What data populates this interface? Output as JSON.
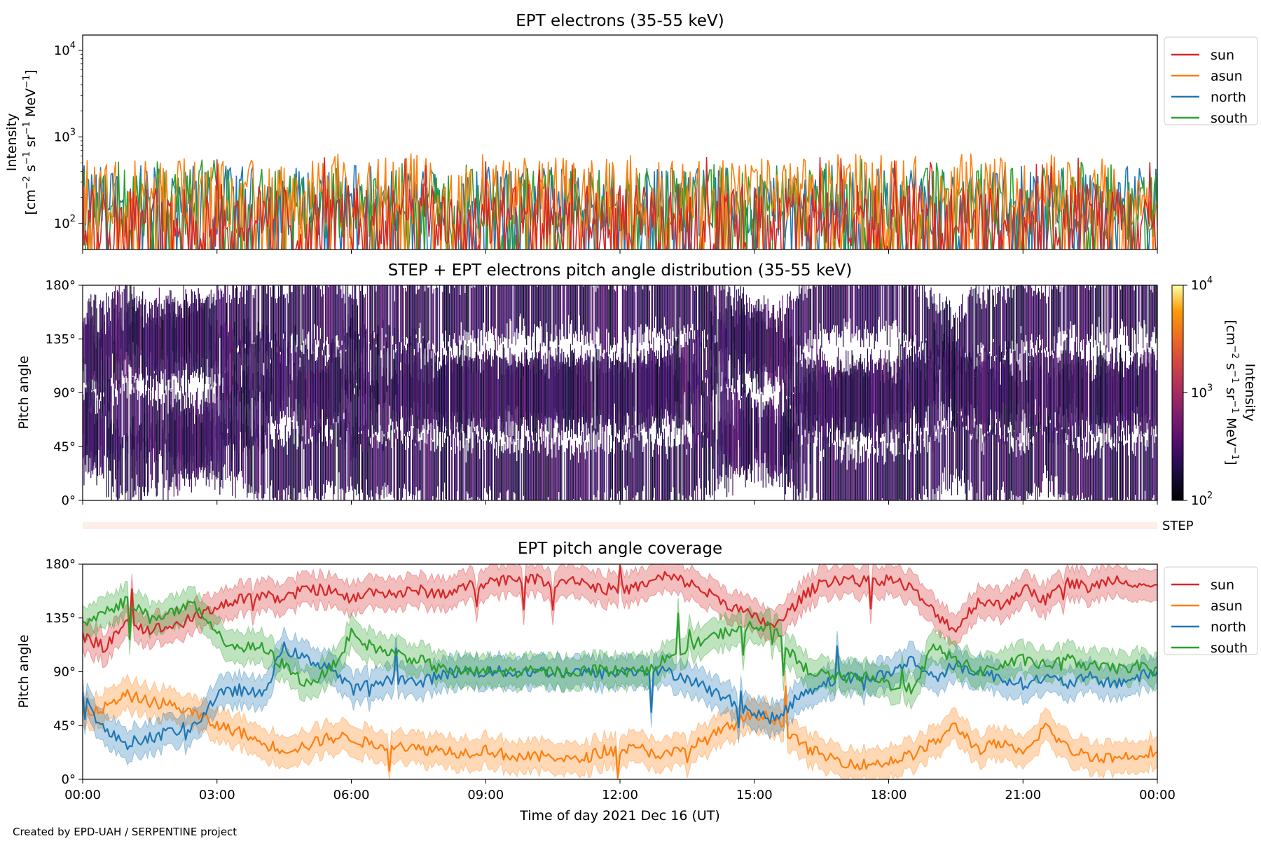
{
  "footer": {
    "credit": "Created by EPD-UAH / SERPENTINE project"
  },
  "colors": {
    "sun": "#d62728",
    "asun": "#ff7f0e",
    "north": "#1f77b4",
    "south": "#2ca02c"
  },
  "chart_data": [
    {
      "type": "line",
      "title": "EPT electrons (35-55 keV)",
      "ylabel": "Intensity",
      "yunit": "[cm^-2 s^-1 sr^-1 MeV^-1]",
      "yscale": "log",
      "ylim": [
        50,
        15000
      ],
      "yticks": [
        {
          "v": 100,
          "exp": "2"
        },
        {
          "v": 1000,
          "exp": "3"
        },
        {
          "v": 10000,
          "exp": "4"
        }
      ],
      "x_range": [
        "2021-12-16 00:00",
        "2021-12-17 00:00"
      ],
      "legend": "right",
      "series": [
        {
          "name": "sun",
          "color": "#d62728",
          "typical": 110,
          "peak": 580
        },
        {
          "name": "asun",
          "color": "#ff7f0e",
          "typical": 220,
          "peak": 640
        },
        {
          "name": "north",
          "color": "#1f77b4",
          "typical": 180,
          "peak": 480
        },
        {
          "name": "south",
          "color": "#2ca02c",
          "typical": 170,
          "peak": 560
        }
      ]
    },
    {
      "type": "heatmap",
      "title": "STEP + EPT electrons pitch angle distribution (35-55 keV)",
      "ylabel": "Pitch angle",
      "ylim": [
        0,
        180
      ],
      "yticks": [
        "0°",
        "45°",
        "90°",
        "135°",
        "180°"
      ],
      "colorbar": {
        "label": "Intensity",
        "unit": "[cm^-2 s^-1 sr^-1 MeV^-1]",
        "scale": "log",
        "range": [
          100,
          10000
        ],
        "ticks": [
          {
            "v": 100,
            "exp": "2"
          },
          {
            "v": 1000,
            "exp": "3"
          },
          {
            "v": 10000,
            "exp": "4"
          }
        ]
      },
      "step_strip_label": "STEP"
    },
    {
      "type": "line",
      "title": "EPT pitch angle coverage",
      "ylabel": "Pitch angle",
      "ylim": [
        0,
        180
      ],
      "yticks": [
        "0°",
        "45°",
        "90°",
        "135°",
        "180°"
      ],
      "xlabel": "Time of day 2021 Dec 16 (UT)",
      "xticks": [
        "00:00",
        "03:00",
        "06:00",
        "09:00",
        "12:00",
        "15:00",
        "18:00",
        "21:00",
        "00:00"
      ],
      "legend": "right",
      "band_width_deg": 13,
      "x_hours": [
        0,
        0.5,
        1,
        1.5,
        2,
        2.5,
        3,
        3.5,
        4,
        4.5,
        5,
        5.5,
        6,
        6.5,
        7,
        7.5,
        8,
        8.5,
        9,
        9.5,
        10,
        10.5,
        11,
        11.5,
        12,
        12.5,
        13,
        13.5,
        14,
        14.5,
        15,
        15.5,
        16,
        16.5,
        17,
        17.5,
        18,
        18.5,
        19,
        19.5,
        20,
        20.5,
        21,
        21.5,
        22,
        22.5,
        23,
        23.5,
        24
      ],
      "series": [
        {
          "name": "sun",
          "color": "#d62728",
          "values": [
            120,
            110,
            130,
            125,
            128,
            135,
            145,
            150,
            155,
            150,
            160,
            158,
            150,
            158,
            155,
            158,
            155,
            160,
            165,
            168,
            168,
            165,
            168,
            160,
            158,
            162,
            170,
            165,
            155,
            145,
            135,
            128,
            150,
            165,
            168,
            165,
            168,
            160,
            140,
            125,
            150,
            145,
            160,
            150,
            165,
            160,
            168,
            165,
            160
          ]
        },
        {
          "name": "asun",
          "color": "#ff7f0e",
          "values": [
            55,
            60,
            70,
            65,
            62,
            55,
            45,
            40,
            30,
            25,
            28,
            35,
            35,
            28,
            30,
            25,
            25,
            22,
            25,
            20,
            18,
            20,
            15,
            22,
            25,
            25,
            20,
            25,
            35,
            45,
            55,
            50,
            30,
            20,
            15,
            12,
            15,
            20,
            30,
            45,
            25,
            30,
            20,
            45,
            25,
            20,
            18,
            20,
            25
          ]
        },
        {
          "name": "north",
          "color": "#1f77b4",
          "values": [
            70,
            40,
            30,
            35,
            40,
            45,
            70,
            75,
            70,
            110,
            100,
            95,
            75,
            80,
            85,
            80,
            88,
            90,
            90,
            90,
            90,
            90,
            90,
            88,
            90,
            90,
            90,
            85,
            75,
            65,
            55,
            50,
            70,
            80,
            85,
            85,
            88,
            100,
            85,
            95,
            90,
            85,
            80,
            85,
            80,
            85,
            80,
            85,
            90
          ]
        },
        {
          "name": "south",
          "color": "#2ca02c",
          "values": [
            130,
            140,
            150,
            135,
            140,
            145,
            120,
            110,
            110,
            95,
            80,
            90,
            120,
            110,
            105,
            100,
            92,
            90,
            90,
            90,
            90,
            90,
            90,
            92,
            90,
            90,
            100,
            110,
            118,
            125,
            130,
            125,
            95,
            88,
            85,
            85,
            80,
            75,
            110,
            100,
            90,
            95,
            100,
            95,
            100,
            95,
            92,
            95,
            90
          ]
        }
      ]
    }
  ]
}
